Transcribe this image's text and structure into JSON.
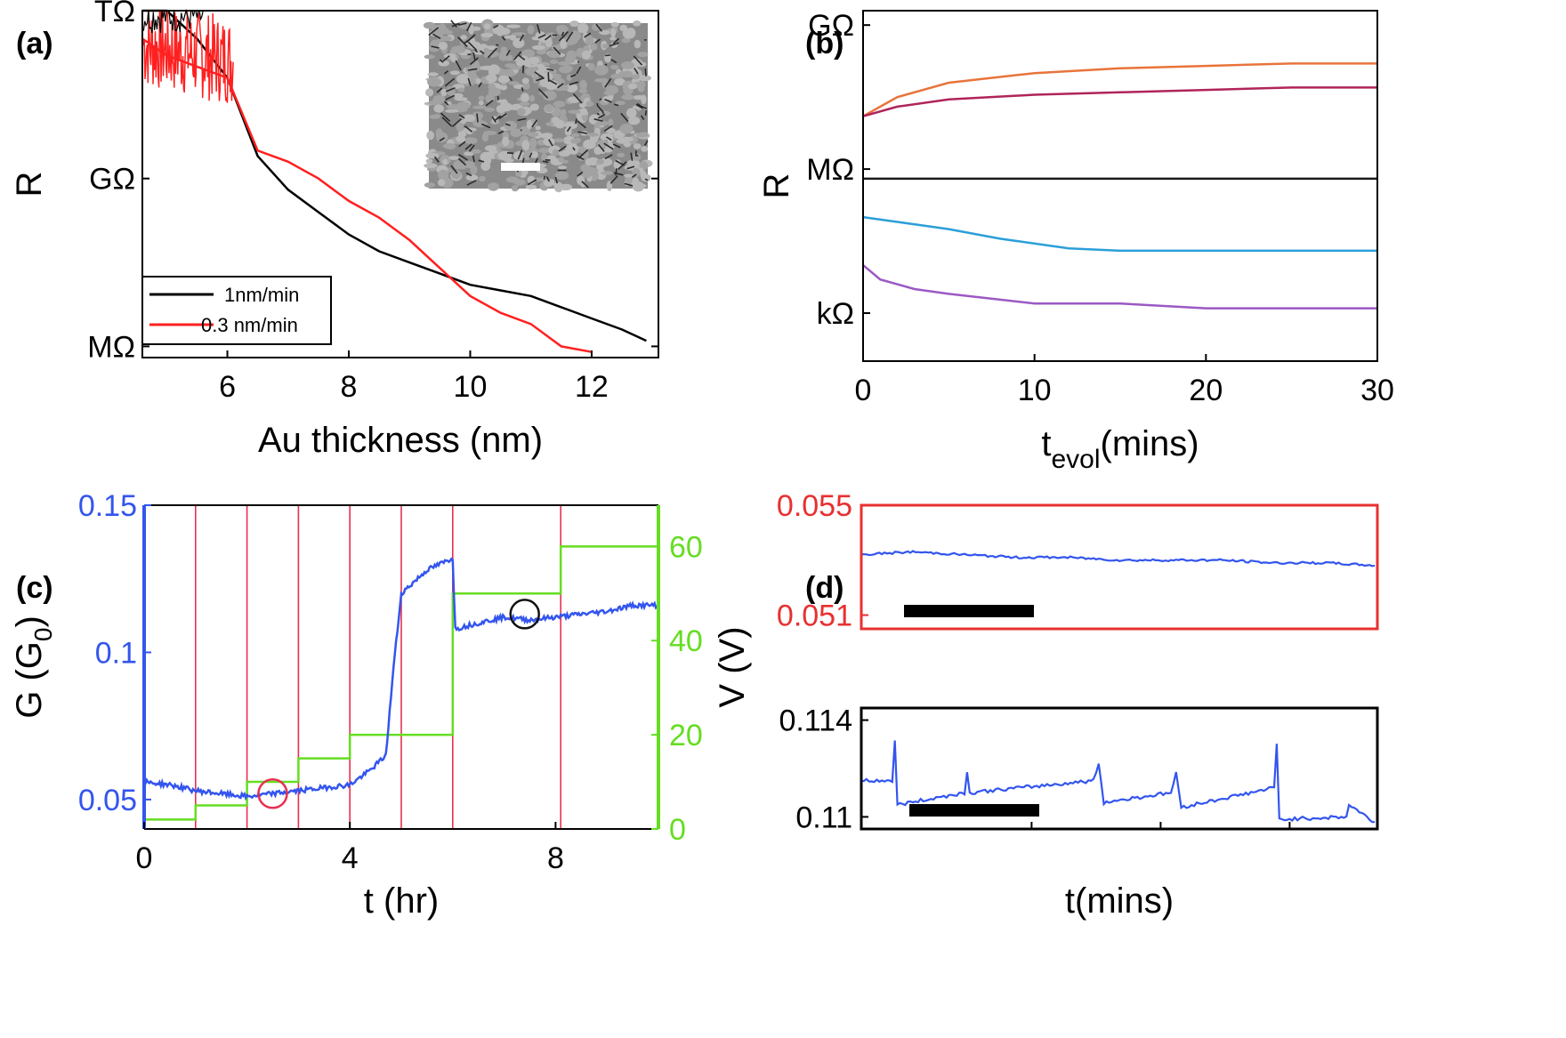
{
  "chart_data": [
    {
      "panel": "(a)",
      "type": "line",
      "xlabel": "Au thickness (nm)",
      "ylabel": "R",
      "xlim": [
        4.6,
        13.1
      ],
      "x_ticks": [
        6,
        8,
        10,
        12
      ],
      "y_scale": "log",
      "y_unit_labels": [
        "TΩ",
        "GΩ",
        "MΩ"
      ],
      "ylim_log10_ohm": [
        5.8,
        12.0
      ],
      "y_ticks_log10_ohm": [
        12,
        9,
        6
      ],
      "legend_placement": "bottom-left",
      "series": [
        {
          "name": "1nm/min",
          "color": "#000000",
          "x": [
            4.6,
            5.0,
            5.5,
            6.0,
            6.5,
            7.0,
            7.5,
            8.0,
            8.5,
            9.0,
            9.5,
            10.0,
            10.5,
            11.0,
            11.5,
            12.0,
            12.5,
            12.9
          ],
          "log10R": [
            12.0,
            12.0,
            11.5,
            10.8,
            9.4,
            8.8,
            8.4,
            8.0,
            7.7,
            7.5,
            7.3,
            7.1,
            7.0,
            6.9,
            6.7,
            6.5,
            6.3,
            6.1
          ]
        },
        {
          "name": "0.3 nm/min",
          "color": "#ff2020",
          "x": [
            4.6,
            5.0,
            5.5,
            6.0,
            6.5,
            7.0,
            7.5,
            8.0,
            8.5,
            9.0,
            9.5,
            10.0,
            10.5,
            11.0,
            11.5,
            12.0
          ],
          "log10R": [
            11.5,
            11.2,
            11.0,
            10.8,
            9.5,
            9.3,
            9.0,
            8.6,
            8.3,
            7.9,
            7.4,
            6.9,
            6.6,
            6.4,
            6.0,
            5.9
          ]
        }
      ],
      "inset": {
        "type": "SEM image",
        "scale_bar": true
      }
    },
    {
      "panel": "(b)",
      "type": "line",
      "xlabel": "t",
      "xlabel_sub": "evol",
      "xlabel_suffix": "(mins)",
      "ylabel": "R",
      "xlim": [
        0,
        30
      ],
      "x_ticks": [
        0,
        10,
        20,
        30
      ],
      "y_scale": "log",
      "y_unit_labels": [
        "GΩ",
        "MΩ",
        "kΩ"
      ],
      "ylim_log10_ohm": [
        2.0,
        9.3
      ],
      "y_ticks_log10_ohm": [
        9,
        6,
        3
      ],
      "series": [
        {
          "color": "#e8743b",
          "x": [
            0,
            2,
            5,
            10,
            15,
            20,
            25,
            30
          ],
          "log10R": [
            7.1,
            7.5,
            7.8,
            8.0,
            8.1,
            8.15,
            8.2,
            8.2
          ]
        },
        {
          "color": "#b0245a",
          "x": [
            0,
            2,
            5,
            10,
            15,
            20,
            25,
            30
          ],
          "log10R": [
            7.1,
            7.3,
            7.45,
            7.55,
            7.6,
            7.65,
            7.7,
            7.7
          ]
        },
        {
          "color": "#1a1a1a",
          "x": [
            0,
            5,
            10,
            15,
            20,
            25,
            30
          ],
          "log10R": [
            5.8,
            5.8,
            5.8,
            5.8,
            5.8,
            5.8,
            5.8
          ]
        },
        {
          "color": "#2b9fd8",
          "x": [
            0,
            2,
            5,
            8,
            12,
            15,
            20,
            25,
            30
          ],
          "log10R": [
            5.0,
            4.9,
            4.75,
            4.55,
            4.35,
            4.3,
            4.3,
            4.3,
            4.3
          ]
        },
        {
          "color": "#9b59c4",
          "x": [
            0,
            1,
            3,
            5,
            10,
            15,
            20,
            25,
            30
          ],
          "log10R": [
            4.0,
            3.7,
            3.5,
            3.4,
            3.2,
            3.2,
            3.1,
            3.1,
            3.1
          ]
        }
      ]
    },
    {
      "panel": "(c)",
      "type": "line",
      "xlabel": "t (hr)",
      "ylabel": "G (G",
      "ylabel_sub": "0",
      "ylabel_suffix": ")",
      "y2label": "V (V)",
      "xlim": [
        0,
        10
      ],
      "x_ticks": [
        0,
        4,
        8
      ],
      "ylim": [
        0.04,
        0.15
      ],
      "y_ticks": [
        0.05,
        0.1,
        0.15
      ],
      "y2lim": [
        0,
        68.75
      ],
      "y2_ticks": [
        0,
        20,
        40,
        60
      ],
      "colors": {
        "G": "#3355ee",
        "V": "#66dd22",
        "marker_lines": "#e83050"
      },
      "marker_lines_x": [
        1,
        2,
        3,
        4,
        5,
        6,
        8.1
      ],
      "series": [
        {
          "name": "G",
          "axis": "left",
          "x": [
            0,
            0.5,
            1,
            1.5,
            2,
            2.5,
            3,
            3.5,
            4,
            4.4,
            4.7,
            4.85,
            5.0,
            5.5,
            6.0,
            6.05,
            6.5,
            7.0,
            7.5,
            8.0,
            8.5,
            9.0,
            9.5,
            10.0
          ],
          "values": [
            0.056,
            0.055,
            0.053,
            0.052,
            0.051,
            0.052,
            0.053,
            0.054,
            0.055,
            0.06,
            0.065,
            0.095,
            0.12,
            0.128,
            0.132,
            0.108,
            0.11,
            0.112,
            0.111,
            0.112,
            0.113,
            0.114,
            0.116,
            0.116
          ]
        },
        {
          "name": "V",
          "axis": "right",
          "type": "step",
          "x": [
            0,
            1,
            2,
            3,
            4,
            6,
            8.1,
            10
          ],
          "values": [
            2,
            5,
            10,
            15,
            20,
            50,
            60,
            60
          ]
        }
      ],
      "annotations": [
        {
          "shape": "circle",
          "color": "#e83050",
          "x": 2.5,
          "y": 0.052
        },
        {
          "shape": "circle",
          "color": "#111111",
          "x": 7.4,
          "y": 0.113
        }
      ]
    },
    {
      "panel": "(d)",
      "type": "line",
      "xlabel": "t(mins)",
      "subplots": [
        {
          "frame_color": "#e83030",
          "tick_color": "#e83030",
          "ylim": [
            0.0505,
            0.055
          ],
          "y_ticks": [
            0.051,
            0.055
          ],
          "y_tick_labels": [
            "0.051",
            "0.055"
          ],
          "x": [
            0,
            0.1,
            0.2,
            0.3,
            0.4,
            0.5,
            0.6,
            0.7,
            0.8,
            0.9,
            1.0
          ],
          "values": [
            0.0532,
            0.0533,
            0.0532,
            0.0531,
            0.0531,
            0.053,
            0.053,
            0.053,
            0.0529,
            0.0529,
            0.0528
          ],
          "scale_bar": true
        },
        {
          "frame_color": "#000000",
          "tick_color": "#000000",
          "ylim": [
            0.1095,
            0.1145
          ],
          "y_ticks": [
            0.11,
            0.114
          ],
          "y_tick_labels": [
            "0.11",
            "0.114"
          ],
          "x": [
            0,
            0.06,
            0.065,
            0.07,
            0.2,
            0.205,
            0.21,
            0.45,
            0.46,
            0.47,
            0.6,
            0.61,
            0.62,
            0.8,
            0.805,
            0.81,
            0.94,
            0.945,
            1.0
          ],
          "values": [
            0.1115,
            0.1115,
            0.1131,
            0.1105,
            0.111,
            0.1118,
            0.111,
            0.1115,
            0.1122,
            0.1106,
            0.111,
            0.1118,
            0.1104,
            0.1112,
            0.113,
            0.1099,
            0.11,
            0.1105,
            0.1097
          ],
          "scale_bar": true
        }
      ]
    }
  ],
  "panel_labels": [
    "(a)",
    "(b)",
    "(c)",
    "(d)"
  ]
}
